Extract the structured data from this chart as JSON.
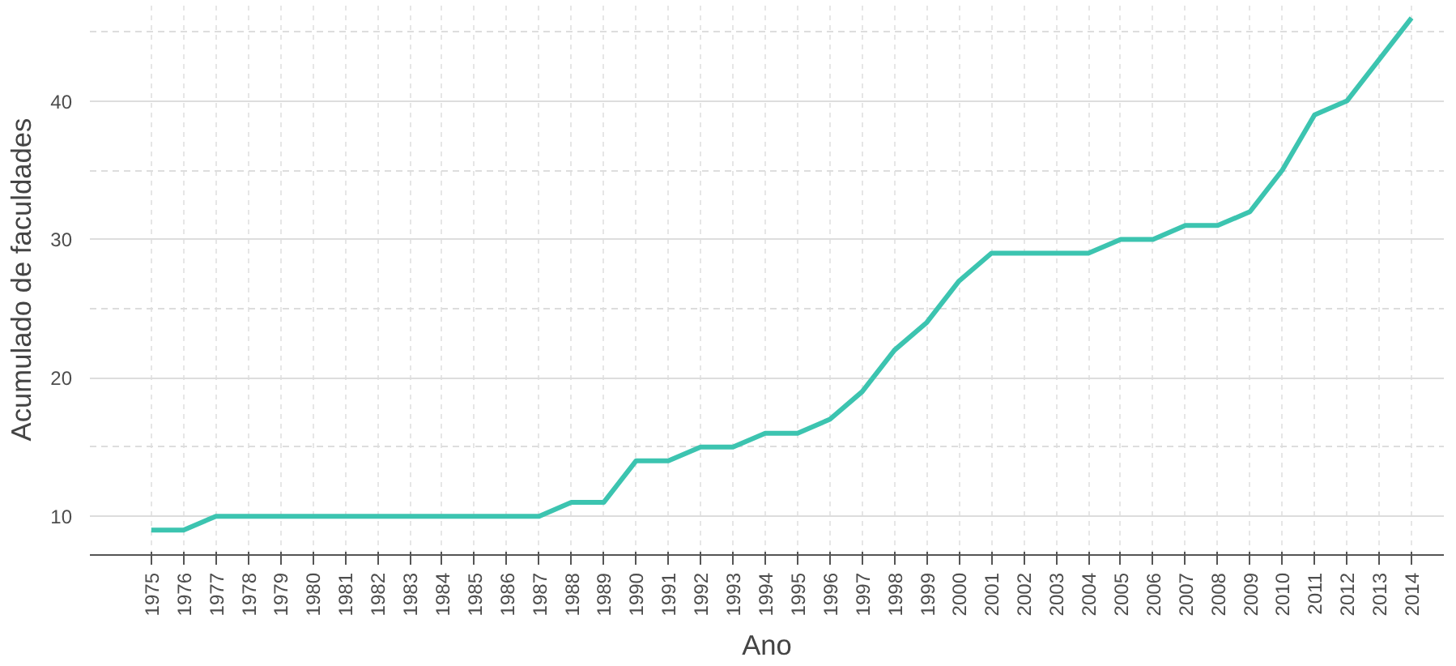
{
  "chart_data": {
    "type": "line",
    "xlabel": "Ano",
    "ylabel": "Acumulado de faculdades",
    "x": [
      1975,
      1976,
      1977,
      1978,
      1979,
      1980,
      1981,
      1982,
      1983,
      1984,
      1985,
      1986,
      1987,
      1988,
      1989,
      1990,
      1991,
      1992,
      1993,
      1994,
      1995,
      1996,
      1997,
      1998,
      1999,
      2000,
      2001,
      2002,
      2003,
      2004,
      2005,
      2006,
      2007,
      2008,
      2009,
      2010,
      2011,
      2012,
      2013,
      2014
    ],
    "series": [
      {
        "color": "#3cc4b0",
        "values": [
          9,
          9,
          10,
          10,
          10,
          10,
          10,
          10,
          10,
          10,
          10,
          10,
          10,
          11,
          11,
          14,
          14,
          15,
          15,
          16,
          16,
          17,
          19,
          22,
          24,
          27,
          29,
          29,
          29,
          29,
          30,
          30,
          31,
          31,
          32,
          35,
          39,
          40,
          43,
          46
        ]
      }
    ],
    "xlim": [
      1973.1,
      2015
    ],
    "ylim": [
      7.2,
      47
    ],
    "xticks": [
      1975,
      1976,
      1977,
      1978,
      1979,
      1980,
      1981,
      1982,
      1983,
      1984,
      1985,
      1986,
      1987,
      1988,
      1989,
      1990,
      1991,
      1992,
      1993,
      1994,
      1995,
      1996,
      1997,
      1998,
      1999,
      2000,
      2001,
      2002,
      2003,
      2004,
      2005,
      2006,
      2007,
      2008,
      2009,
      2010,
      2011,
      2012,
      2013,
      2014
    ],
    "yticks": [
      10,
      20,
      30,
      40
    ],
    "grid": true,
    "line_style": "solid",
    "marker": "none"
  }
}
